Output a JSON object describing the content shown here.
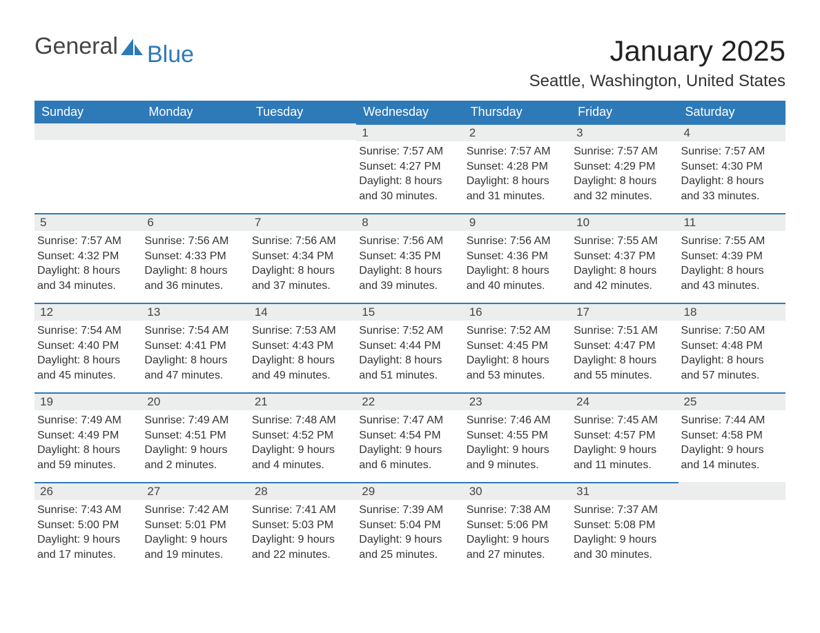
{
  "logo": {
    "part1": "General",
    "part2": "Blue"
  },
  "title": "January 2025",
  "location": "Seattle, Washington, United States",
  "colors": {
    "accent": "#2e79b8",
    "header_bg": "#2e79b8",
    "header_fg": "#ffffff",
    "daynum_bg": "#eceded",
    "text": "#333333",
    "background": "#ffffff"
  },
  "typography": {
    "month_title_fontsize": 42,
    "location_fontsize": 24,
    "weekday_fontsize": 18,
    "daynum_fontsize": 17,
    "body_fontsize": 16,
    "logo_fontsize": 34
  },
  "weekdays": [
    "Sunday",
    "Monday",
    "Tuesday",
    "Wednesday",
    "Thursday",
    "Friday",
    "Saturday"
  ],
  "grid": [
    [
      null,
      null,
      null,
      {
        "n": "1",
        "sunrise": "7:57 AM",
        "sunset": "4:27 PM",
        "dl_h": "8",
        "dl_m": "30"
      },
      {
        "n": "2",
        "sunrise": "7:57 AM",
        "sunset": "4:28 PM",
        "dl_h": "8",
        "dl_m": "31"
      },
      {
        "n": "3",
        "sunrise": "7:57 AM",
        "sunset": "4:29 PM",
        "dl_h": "8",
        "dl_m": "32"
      },
      {
        "n": "4",
        "sunrise": "7:57 AM",
        "sunset": "4:30 PM",
        "dl_h": "8",
        "dl_m": "33"
      }
    ],
    [
      {
        "n": "5",
        "sunrise": "7:57 AM",
        "sunset": "4:32 PM",
        "dl_h": "8",
        "dl_m": "34"
      },
      {
        "n": "6",
        "sunrise": "7:56 AM",
        "sunset": "4:33 PM",
        "dl_h": "8",
        "dl_m": "36"
      },
      {
        "n": "7",
        "sunrise": "7:56 AM",
        "sunset": "4:34 PM",
        "dl_h": "8",
        "dl_m": "37"
      },
      {
        "n": "8",
        "sunrise": "7:56 AM",
        "sunset": "4:35 PM",
        "dl_h": "8",
        "dl_m": "39"
      },
      {
        "n": "9",
        "sunrise": "7:56 AM",
        "sunset": "4:36 PM",
        "dl_h": "8",
        "dl_m": "40"
      },
      {
        "n": "10",
        "sunrise": "7:55 AM",
        "sunset": "4:37 PM",
        "dl_h": "8",
        "dl_m": "42"
      },
      {
        "n": "11",
        "sunrise": "7:55 AM",
        "sunset": "4:39 PM",
        "dl_h": "8",
        "dl_m": "43"
      }
    ],
    [
      {
        "n": "12",
        "sunrise": "7:54 AM",
        "sunset": "4:40 PM",
        "dl_h": "8",
        "dl_m": "45"
      },
      {
        "n": "13",
        "sunrise": "7:54 AM",
        "sunset": "4:41 PM",
        "dl_h": "8",
        "dl_m": "47"
      },
      {
        "n": "14",
        "sunrise": "7:53 AM",
        "sunset": "4:43 PM",
        "dl_h": "8",
        "dl_m": "49"
      },
      {
        "n": "15",
        "sunrise": "7:52 AM",
        "sunset": "4:44 PM",
        "dl_h": "8",
        "dl_m": "51"
      },
      {
        "n": "16",
        "sunrise": "7:52 AM",
        "sunset": "4:45 PM",
        "dl_h": "8",
        "dl_m": "53"
      },
      {
        "n": "17",
        "sunrise": "7:51 AM",
        "sunset": "4:47 PM",
        "dl_h": "8",
        "dl_m": "55"
      },
      {
        "n": "18",
        "sunrise": "7:50 AM",
        "sunset": "4:48 PM",
        "dl_h": "8",
        "dl_m": "57"
      }
    ],
    [
      {
        "n": "19",
        "sunrise": "7:49 AM",
        "sunset": "4:49 PM",
        "dl_h": "8",
        "dl_m": "59"
      },
      {
        "n": "20",
        "sunrise": "7:49 AM",
        "sunset": "4:51 PM",
        "dl_h": "9",
        "dl_m": "2"
      },
      {
        "n": "21",
        "sunrise": "7:48 AM",
        "sunset": "4:52 PM",
        "dl_h": "9",
        "dl_m": "4"
      },
      {
        "n": "22",
        "sunrise": "7:47 AM",
        "sunset": "4:54 PM",
        "dl_h": "9",
        "dl_m": "6"
      },
      {
        "n": "23",
        "sunrise": "7:46 AM",
        "sunset": "4:55 PM",
        "dl_h": "9",
        "dl_m": "9"
      },
      {
        "n": "24",
        "sunrise": "7:45 AM",
        "sunset": "4:57 PM",
        "dl_h": "9",
        "dl_m": "11"
      },
      {
        "n": "25",
        "sunrise": "7:44 AM",
        "sunset": "4:58 PM",
        "dl_h": "9",
        "dl_m": "14"
      }
    ],
    [
      {
        "n": "26",
        "sunrise": "7:43 AM",
        "sunset": "5:00 PM",
        "dl_h": "9",
        "dl_m": "17"
      },
      {
        "n": "27",
        "sunrise": "7:42 AM",
        "sunset": "5:01 PM",
        "dl_h": "9",
        "dl_m": "19"
      },
      {
        "n": "28",
        "sunrise": "7:41 AM",
        "sunset": "5:03 PM",
        "dl_h": "9",
        "dl_m": "22"
      },
      {
        "n": "29",
        "sunrise": "7:39 AM",
        "sunset": "5:04 PM",
        "dl_h": "9",
        "dl_m": "25"
      },
      {
        "n": "30",
        "sunrise": "7:38 AM",
        "sunset": "5:06 PM",
        "dl_h": "9",
        "dl_m": "27"
      },
      {
        "n": "31",
        "sunrise": "7:37 AM",
        "sunset": "5:08 PM",
        "dl_h": "9",
        "dl_m": "30"
      },
      null
    ]
  ],
  "labels": {
    "sunrise_prefix": "Sunrise: ",
    "sunset_prefix": "Sunset: ",
    "daylight_prefix": "Daylight: ",
    "hours_word": " hours",
    "and_word": "and ",
    "minutes_suffix": " minutes."
  }
}
